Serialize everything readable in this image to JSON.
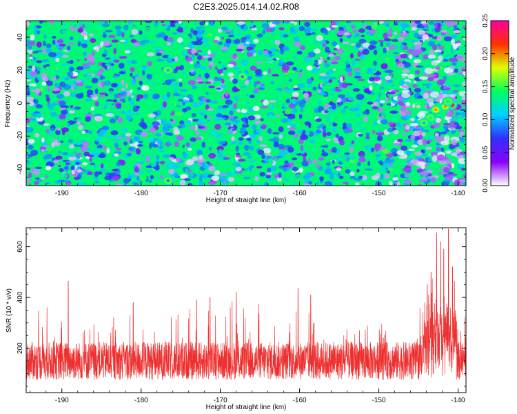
{
  "title": "C2E3.2025.014.14.02.R08",
  "chart_data": [
    {
      "type": "heatmap",
      "xlabel": "Height of straight line (km)",
      "ylabel": "Frequency (Hz)",
      "xlim": [
        -194.5,
        -139
      ],
      "ylim": [
        -50,
        50
      ],
      "xticks": [
        -190,
        -180,
        -170,
        -160,
        -150,
        -140
      ],
      "yticks": [
        -40,
        -20,
        0,
        20,
        40
      ],
      "colorbar": {
        "label": "Normalized spectral amplitude",
        "range": [
          0,
          0.25
        ],
        "ticks": [
          "0.00",
          "0.05",
          "0.10",
          "0.15",
          "0.20",
          "0.25"
        ],
        "colormap": [
          "#ffffff",
          "#8a00ff",
          "#3030ff",
          "#00d0ff",
          "#00ff60",
          "#e0ff00",
          "#ff3000",
          "#ff00a0"
        ]
      },
      "background_level": 0.04,
      "hotspots": [
        {
          "x": -140.8,
          "y": -1,
          "value": 0.25
        },
        {
          "x": -141.6,
          "y": -2,
          "value": 0.2
        },
        {
          "x": -142.8,
          "y": -4,
          "value": 0.2
        },
        {
          "x": -143.5,
          "y": -9,
          "value": 0.14
        },
        {
          "x": -144.3,
          "y": -12,
          "value": 0.1
        },
        {
          "x": -141.3,
          "y": 1,
          "value": 0.12
        },
        {
          "x": -167.2,
          "y": 16,
          "value": 0.09
        },
        {
          "x": -176.6,
          "y": 20,
          "value": 0.1
        },
        {
          "x": -176.6,
          "y": -47,
          "value": 0.09
        }
      ]
    },
    {
      "type": "line",
      "xlabel": "Height of straight line (km)",
      "ylabel": "SNR (10 * v/v)",
      "xlim": [
        -194.5,
        -139
      ],
      "ylim": [
        25,
        675
      ],
      "xticks": [
        -190,
        -180,
        -170,
        -160,
        -150,
        -140
      ],
      "yticks": [
        200,
        400,
        600
      ],
      "series": [
        {
          "color": "#ee3030",
          "baseline": [
            150,
            150
          ],
          "peaks": [
            {
              "x": -189.2,
              "y": 465
            },
            {
              "x": -142.7,
              "y": 655
            },
            {
              "x": -142.2,
              "y": 620
            },
            {
              "x": -141.2,
              "y": 670
            },
            {
              "x": -141.8,
              "y": 590
            },
            {
              "x": -143.4,
              "y": 500
            },
            {
              "x": -143.9,
              "y": 450
            },
            {
              "x": -140.7,
              "y": 520
            },
            {
              "x": -160.2,
              "y": 435
            },
            {
              "x": -168.0,
              "y": 420
            },
            {
              "x": -171.3,
              "y": 400
            },
            {
              "x": -158.6,
              "y": 410
            },
            {
              "x": -173.0,
              "y": 390
            },
            {
              "x": -181.0,
              "y": 380
            }
          ]
        }
      ]
    }
  ]
}
